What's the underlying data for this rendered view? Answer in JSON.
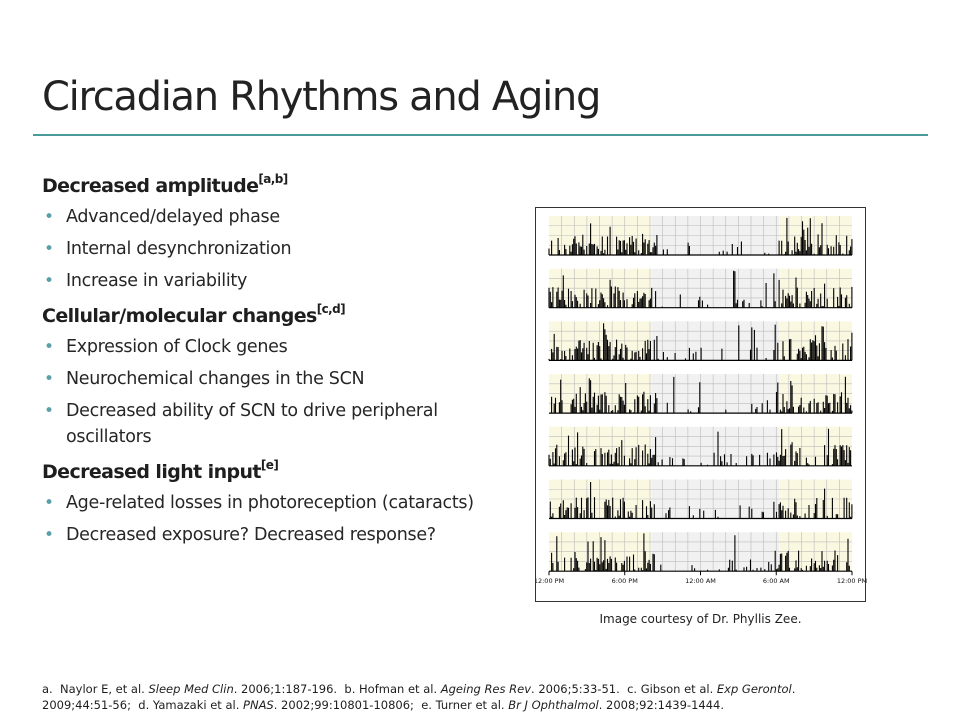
{
  "slide": {
    "title": "Circadian Rhythms and Aging"
  },
  "sections": [
    {
      "heading": "Decreased amplitude",
      "ref": "[a,b]",
      "bullets": [
        "Advanced/delayed phase",
        "Internal desynchronization",
        "Increase in variability"
      ]
    },
    {
      "heading": "Cellular/molecular changes",
      "ref": "[c,d]",
      "bullets": [
        "Expression of Clock genes",
        "Neurochemical changes in the SCN",
        "Decreased ability of SCN to drive peripheral oscillators"
      ]
    },
    {
      "heading": "Decreased light input",
      "ref": "[e]",
      "bullets": [
        "Age-related losses in photoreception (cataracts)",
        "Decreased exposure? Decreased response?"
      ]
    }
  ],
  "figure": {
    "x_tick_labels": [
      "12:00 PM",
      "6:00 PM",
      "12:00 AM",
      "6:00 AM",
      "12:00 PM"
    ],
    "row_count": 7,
    "caption": "Image courtesy of Dr. Phyllis Zee.",
    "colors": {
      "day_shade": "#fbf8e2",
      "night_shade": "#f1f1f1",
      "grid": "#bbbbbb",
      "activity": "#000000"
    }
  },
  "references": {
    "a_label": "a.",
    "a_authors": "Naylor E, et al.",
    "a_journal": "Sleep Med Clin",
    "a_rest": ". 2006;1:187-196.",
    "b_label": "b.",
    "b_authors": "Hofman et al.",
    "b_journal": "Ageing Res Rev",
    "b_rest": ". 2006;5:33-51.",
    "c_label": "c.",
    "c_authors": "Gibson et al.",
    "c_journal": "Exp Gerontol",
    "c_rest": ".",
    "c_rest2": "2009;44:51-56;",
    "d_label": "d.",
    "d_authors": "Yamazaki et al.",
    "d_journal": "PNAS",
    "d_rest": ". 2002;99:10801-10806;",
    "e_label": "e.",
    "e_authors": "Turner et al.",
    "e_journal": "Br J Ophthalmol",
    "e_rest": ". 2008;92:1439-1444."
  }
}
